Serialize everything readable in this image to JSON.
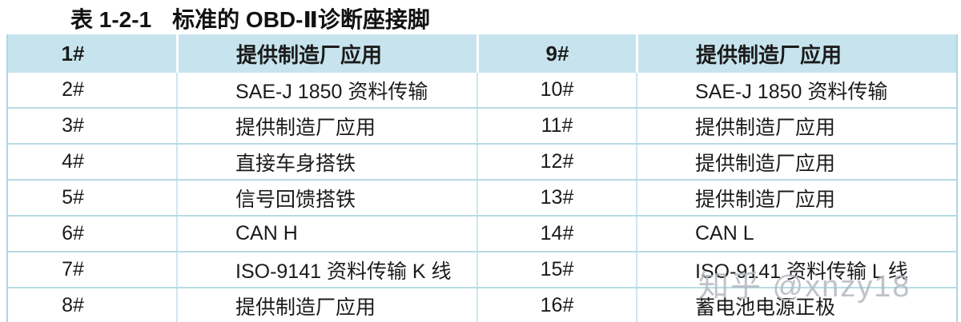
{
  "title": {
    "label": "表 1-2-1",
    "text": "标准的 OBD-Ⅱ诊断座接脚"
  },
  "table": {
    "header": {
      "pin_left": "1#",
      "desc_left": "提供制造厂应用",
      "pin_right": "9#",
      "desc_right": "提供制造厂应用"
    },
    "rows": [
      {
        "pin_left": "2#",
        "desc_left": "SAE-J 1850 资料传输",
        "pin_right": "10#",
        "desc_right": "SAE-J 1850 资料传输"
      },
      {
        "pin_left": "3#",
        "desc_left": "提供制造厂应用",
        "pin_right": "11#",
        "desc_right": "提供制造厂应用"
      },
      {
        "pin_left": "4#",
        "desc_left": "直接车身搭铁",
        "pin_right": "12#",
        "desc_right": "提供制造厂应用"
      },
      {
        "pin_left": "5#",
        "desc_left": "信号回馈搭铁",
        "pin_right": "13#",
        "desc_right": "提供制造厂应用"
      },
      {
        "pin_left": "6#",
        "desc_left": "CAN H",
        "pin_right": "14#",
        "desc_right": "CAN L"
      },
      {
        "pin_left": "7#",
        "desc_left": "ISO-9141 资料传输 K 线",
        "pin_right": "15#",
        "desc_right": "ISO-9141 资料传输 L 线"
      },
      {
        "pin_left": "8#",
        "desc_left": "提供制造厂应用",
        "pin_right": "16#",
        "desc_right": "蓄电池电源正极"
      }
    ]
  },
  "watermark": {
    "text": "知乎 @xnzy18"
  },
  "colors": {
    "header_bg": "#c7e4ee",
    "grid_line": "#b7dbe6",
    "vertical_line": "#cde7ef",
    "bottom_border": "#8ecbdb",
    "text": "#1b1b1b",
    "watermark": "#b4b8c0"
  }
}
